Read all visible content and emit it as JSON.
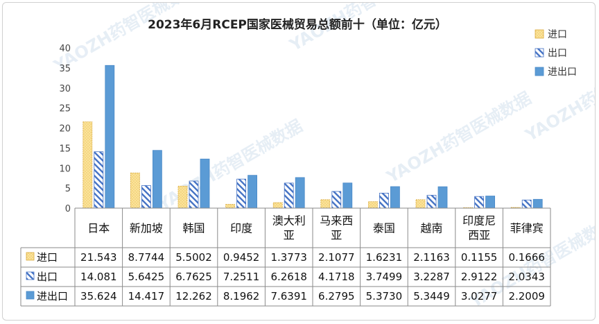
{
  "chart_data": {
    "type": "bar",
    "title": "2023年6月RCEP国家医械贸易总额前十（单位：亿元）",
    "categories": [
      [
        "日本"
      ],
      [
        "新加坡"
      ],
      [
        "韩国"
      ],
      [
        "印度"
      ],
      [
        "澳大利",
        "亚"
      ],
      [
        "马来西",
        "亚"
      ],
      [
        "泰国"
      ],
      [
        "越南"
      ],
      [
        "印度尼",
        "西亚"
      ],
      [
        "菲律宾"
      ]
    ],
    "series": [
      {
        "name": "进口",
        "color": "#fbe39a",
        "pattern": "dots",
        "values_text": [
          "21.543",
          "8.7744",
          "5.5002",
          "0.9452",
          "1.3773",
          "2.1077",
          "1.6231",
          "2.1163",
          "0.1155",
          "0.1666"
        ]
      },
      {
        "name": "出口",
        "color": "#4472c4",
        "pattern": "hatch",
        "values_text": [
          "14.081",
          "5.6425",
          "6.7625",
          "7.2511",
          "6.2618",
          "4.1718",
          "3.7499",
          "3.2287",
          "2.9122",
          "2.0343"
        ]
      },
      {
        "name": "进出口",
        "color": "#5b9bd5",
        "pattern": "solid",
        "values_text": [
          "35.624",
          "14.417",
          "12.262",
          "8.1962",
          "7.6391",
          "6.2795",
          "5.3730",
          "5.3449",
          "3.0277",
          "2.2009"
        ]
      }
    ],
    "y_ticks": [
      "0",
      "5",
      "10",
      "15",
      "20",
      "25",
      "30",
      "35",
      "40"
    ],
    "ylim": [
      0,
      40
    ],
    "grid": false,
    "legend_position": "top-right",
    "watermark": "YAOZH药智医械数据"
  }
}
